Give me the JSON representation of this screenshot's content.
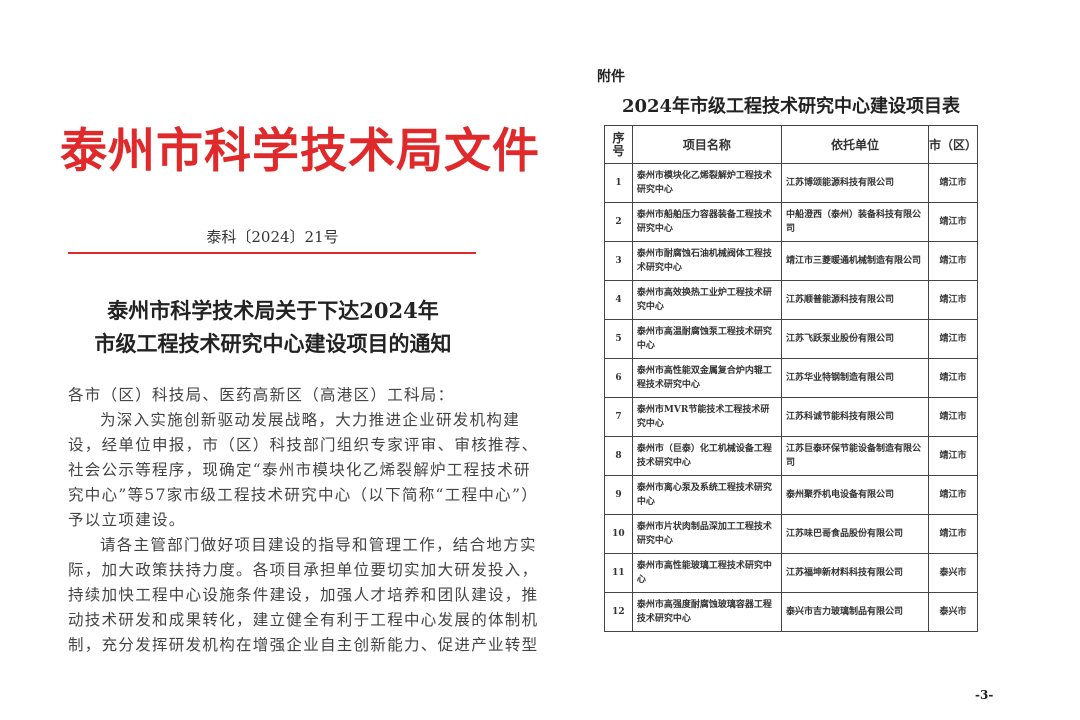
{
  "left_page": {
    "header_title": "泰州市科学技术局文件",
    "doc_number": "泰科〔2024〕21号",
    "notice_title": [
      "泰州市科学技术局关于下达2024年",
      "市级工程技术研究中心建设项目的通知"
    ],
    "body_lines": [
      "各市（区）科技局、医药高新区（高港区）工科局：",
      "为深入实施创新驱动发展战略，大力推进企业研发机构建",
      "设，经单位申报，市（区）科技部门组织专家评审、审核推荐、",
      "社会公示等程序，现确定“泰州市模块化乙烯裂解炉工程技术研",
      "究中心”等57家市级工程技术研究中心（以下简称“工程中心”）",
      "予以立项建设。",
      "请各主管部门做好项目建设的指导和管理工作，结合地方实",
      "际，加大政策扶持力度。各项目承担单位要切实加大研发投入，",
      "持续加快工程中心设施条件建设，加强人才培养和团队建设，推",
      "动技术研发和成果转化，建立健全有利于工程中心发展的体制机",
      "制，充分发挥研发机构在增强企业自主创新能力、促进产业转型"
    ],
    "accent_color": "#e0292b"
  },
  "right_page": {
    "attachment_label": "附件",
    "table_title": "2024年市级工程技术研究中心建设项目表",
    "columns": [
      "序号",
      "项目名称",
      "依托单位",
      "市（区）"
    ],
    "rows": [
      {
        "no": "1",
        "name": "泰州市模块化乙烯裂解炉工程技术研究中心",
        "unit": "江苏博颂能源科技有限公司",
        "city": "靖江市"
      },
      {
        "no": "2",
        "name": "泰州市船舶压力容器装备工程技术研究中心",
        "unit": "中船澄西（泰州）装备科技有限公司",
        "city": "靖江市"
      },
      {
        "no": "3",
        "name": "泰州市耐腐蚀石油机械阀体工程技术研究中心",
        "unit": "靖江市三菱暖通机械制造有限公司",
        "city": "靖江市"
      },
      {
        "no": "4",
        "name": "泰州市高效换热工业炉工程技术研究中心",
        "unit": "江苏顺普能源科技有限公司",
        "city": "靖江市"
      },
      {
        "no": "5",
        "name": "泰州市高温耐腐蚀泵工程技术研究中心",
        "unit": "江苏飞跃泵业股份有限公司",
        "city": "靖江市"
      },
      {
        "no": "6",
        "name": "泰州市高性能双金属复合炉内辊工程技术研究中心",
        "unit": "江苏华业特钢制造有限公司",
        "city": "靖江市"
      },
      {
        "no": "7",
        "name": "泰州市MVR节能技术工程技术研究中心",
        "unit": "江苏科诚节能科技有限公司",
        "city": "靖江市"
      },
      {
        "no": "8",
        "name": "泰州市（巨泰）化工机械设备工程技术研究中心",
        "unit": "江苏巨泰环保节能设备制造有限公司",
        "city": "靖江市"
      },
      {
        "no": "9",
        "name": "泰州市离心泵及系统工程技术研究中心",
        "unit": "泰州聚乔机电设备有限公司",
        "city": "靖江市"
      },
      {
        "no": "10",
        "name": "泰州市片状肉制品深加工工程技术研究中心",
        "unit": "江苏味巴哥食品股份有限公司",
        "city": "靖江市"
      },
      {
        "no": "11",
        "name": "泰州市高性能玻璃工程技术研究中心",
        "unit": "江苏福坤新材料科技有限公司",
        "city": "泰兴市"
      },
      {
        "no": "12",
        "name": "泰州市高强度耐腐蚀玻璃容器工程技术研究中心",
        "unit": "泰兴市吉力玻璃制品有限公司",
        "city": "泰兴市"
      }
    ],
    "page_number": "-3-"
  }
}
